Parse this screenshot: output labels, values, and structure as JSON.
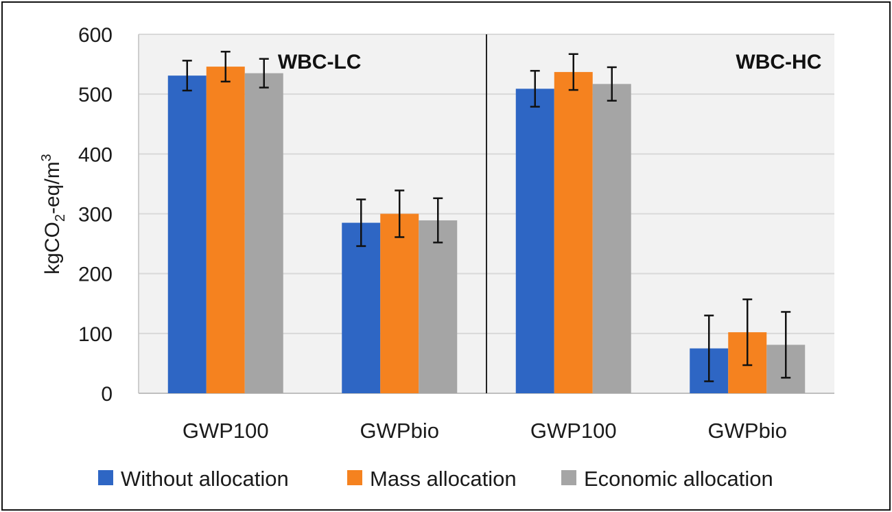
{
  "chart_data": {
    "type": "bar",
    "ylabel": {
      "prefix": "kgCO",
      "sub": "2",
      "mid": "-eq/m",
      "sup": "3"
    },
    "ylim": [
      0,
      600
    ],
    "yticks": [
      "0",
      "100",
      "200",
      "300",
      "400",
      "500",
      "600"
    ],
    "grid": true,
    "legend_position": "bottom",
    "panels": [
      {
        "label": "WBC-LC",
        "categories": [
          "GWP100",
          "GWPbio"
        ],
        "series": [
          {
            "name": "Without allocation",
            "values": [
              531,
              285
            ],
            "error": [
              25,
              39
            ]
          },
          {
            "name": "Mass allocation",
            "values": [
              546,
              300
            ],
            "error": [
              25,
              39
            ]
          },
          {
            "name": "Economic allocation",
            "values": [
              535,
              289
            ],
            "error": [
              24,
              37
            ]
          }
        ]
      },
      {
        "label": "WBC-HC",
        "categories": [
          "GWP100",
          "GWPbio"
        ],
        "series": [
          {
            "name": "Without allocation",
            "values": [
              509,
              75
            ],
            "error": [
              30,
              55
            ]
          },
          {
            "name": "Mass allocation",
            "values": [
              537,
              102
            ],
            "error": [
              30,
              55
            ]
          },
          {
            "name": "Economic allocation",
            "values": [
              517,
              81
            ],
            "error": [
              28,
              55
            ]
          }
        ]
      }
    ],
    "colors": {
      "Without allocation": "#2e66c4",
      "Mass allocation": "#f5821f",
      "Economic allocation": "#a5a5a5"
    }
  }
}
